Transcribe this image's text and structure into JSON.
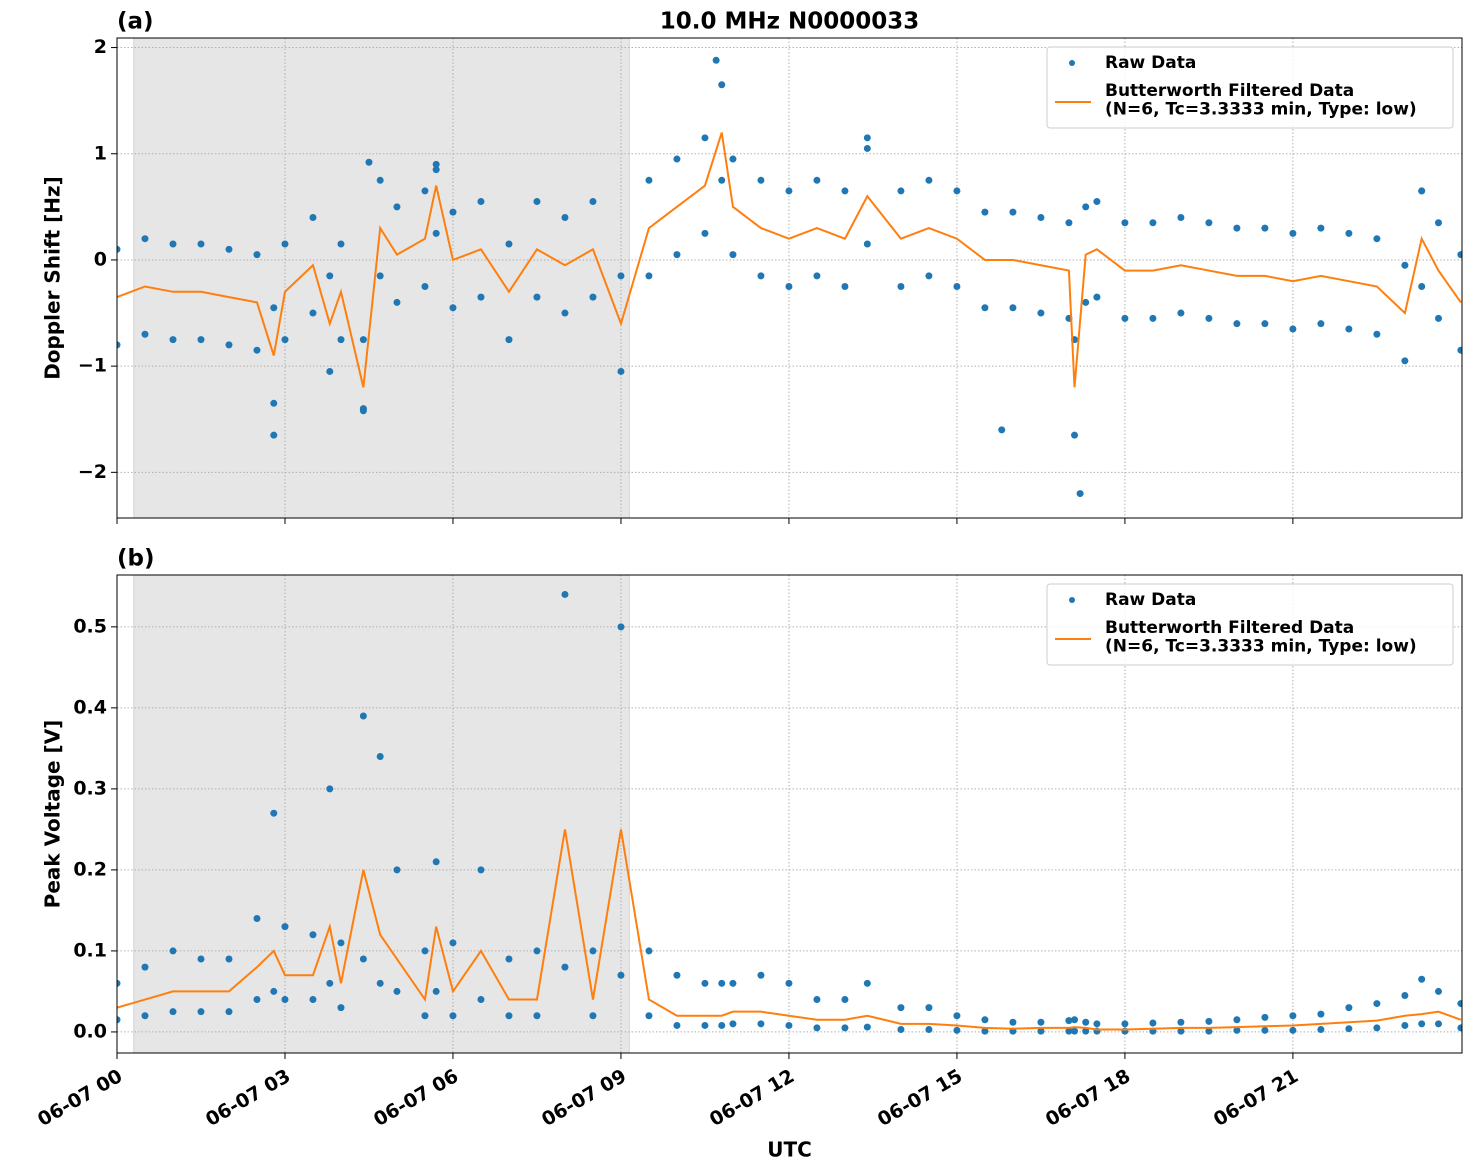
{
  "chart_data": [
    {
      "type": "line",
      "panel_label": "(a)",
      "title": "10.0 MHz N0000033",
      "ylabel": "Doppler Shift [Hz]",
      "xlim": [
        0,
        24.02
      ],
      "xticks": [
        0,
        3,
        6,
        9,
        12,
        15,
        18,
        21
      ],
      "ylim": [
        -2.43,
        2.09
      ],
      "yticks": [
        {
          "value": -2,
          "label": "−2"
        },
        {
          "value": -1,
          "label": "−1"
        },
        0,
        1,
        2
      ],
      "grid": true,
      "legend": "upper right",
      "shade": [
        0.3,
        9.15
      ],
      "shade_color": "#e6e6e6",
      "series": [
        {
          "name": "Raw Data",
          "color": "#1f77b4",
          "marker": "dot",
          "x": [
            0,
            0.5,
            1,
            1.5,
            2,
            2.5,
            2.8,
            3,
            3.5,
            3.8,
            4,
            4.4,
            4.7,
            5,
            5.5,
            5.7,
            6,
            6.5,
            7,
            7.5,
            8,
            8.5,
            9,
            9.5,
            10,
            10.5,
            10.8,
            11,
            11.5,
            12,
            12.5,
            13,
            13.4,
            14,
            14.5,
            15,
            15.5,
            16,
            16.5,
            17,
            17.1,
            17.3,
            17.5,
            18,
            18.5,
            19,
            19.5,
            20,
            20.5,
            21,
            21.5,
            22,
            22.5,
            23,
            23.3,
            23.6,
            24,
            0,
            0.5,
            1,
            1.5,
            2,
            2.5,
            2.8,
            3,
            3.5,
            3.8,
            4,
            4.4,
            4.7,
            5,
            5.5,
            5.7,
            6,
            6.5,
            7,
            7.5,
            8,
            8.5,
            9,
            9.5,
            10,
            10.5,
            10.8,
            11,
            11.5,
            12,
            12.5,
            13,
            13.4,
            14,
            14.5,
            15,
            15.5,
            16,
            16.5,
            17,
            17.1,
            17.3,
            17.5,
            18,
            18.5,
            19,
            19.5,
            20,
            20.5,
            21,
            21.5,
            22,
            22.5,
            23,
            23.3,
            23.6,
            24,
            2.8,
            4.4,
            4.5,
            5.7,
            10.7,
            13.4,
            15.8,
            17.2,
            23.3
          ],
          "values": [
            0.1,
            0.2,
            0.15,
            0.15,
            0.1,
            0.05,
            -0.45,
            0.15,
            0.4,
            -0.15,
            0.15,
            -0.75,
            0.75,
            0.5,
            0.65,
            0.85,
            0.45,
            0.55,
            0.15,
            0.55,
            0.4,
            0.55,
            -0.15,
            0.75,
            0.95,
            1.15,
            1.65,
            0.95,
            0.75,
            0.65,
            0.75,
            0.65,
            1.05,
            0.65,
            0.75,
            0.65,
            0.45,
            0.45,
            0.4,
            0.35,
            -0.75,
            0.5,
            0.55,
            0.35,
            0.35,
            0.4,
            0.35,
            0.3,
            0.3,
            0.25,
            0.3,
            0.25,
            0.2,
            -0.05,
            0.65,
            0.35,
            0.05,
            -0.8,
            -0.7,
            -0.75,
            -0.75,
            -0.8,
            -0.85,
            -1.35,
            -0.75,
            -0.5,
            -1.05,
            -0.75,
            -1.4,
            -0.15,
            -0.4,
            -0.25,
            0.25,
            -0.45,
            -0.35,
            -0.75,
            -0.35,
            -0.5,
            -0.35,
            -1.05,
            -0.15,
            0.05,
            0.25,
            0.75,
            0.05,
            -0.15,
            -0.25,
            -0.15,
            -0.25,
            0.15,
            -0.25,
            -0.15,
            -0.25,
            -0.45,
            -0.45,
            -0.5,
            -0.55,
            -1.65,
            -0.4,
            -0.35,
            -0.55,
            -0.55,
            -0.5,
            -0.55,
            -0.6,
            -0.6,
            -0.65,
            -0.6,
            -0.65,
            -0.7,
            -0.95,
            -0.25,
            -0.55,
            -0.85,
            -1.65,
            -1.42,
            0.92,
            0.9,
            1.88,
            1.15,
            -1.6,
            -2.2,
            0.65
          ]
        },
        {
          "name": "Butterworth Filtered Data\n(N=6, Tc=3.3333 min, Type: low)",
          "color": "#ff7f0e",
          "x": [
            0,
            0.5,
            1,
            1.5,
            2,
            2.5,
            2.8,
            3,
            3.5,
            3.8,
            4,
            4.4,
            4.7,
            5,
            5.5,
            5.7,
            6,
            6.5,
            7,
            7.5,
            8,
            8.5,
            9,
            9.5,
            10,
            10.5,
            10.8,
            11,
            11.5,
            12,
            12.5,
            13,
            13.4,
            14,
            14.5,
            15,
            15.5,
            16,
            16.5,
            17,
            17.1,
            17.3,
            17.5,
            18,
            18.5,
            19,
            19.5,
            20,
            20.5,
            21,
            21.5,
            22,
            22.5,
            23,
            23.3,
            23.6,
            24
          ],
          "values": [
            -0.35,
            -0.25,
            -0.3,
            -0.3,
            -0.35,
            -0.4,
            -0.9,
            -0.3,
            -0.05,
            -0.6,
            -0.3,
            -1.2,
            0.3,
            0.05,
            0.2,
            0.7,
            0.0,
            0.1,
            -0.3,
            0.1,
            -0.05,
            0.1,
            -0.6,
            0.3,
            0.5,
            0.7,
            1.2,
            0.5,
            0.3,
            0.2,
            0.3,
            0.2,
            0.6,
            0.2,
            0.3,
            0.2,
            0.0,
            0.0,
            -0.05,
            -0.1,
            -1.2,
            0.05,
            0.1,
            -0.1,
            -0.1,
            -0.05,
            -0.1,
            -0.15,
            -0.15,
            -0.2,
            -0.15,
            -0.2,
            -0.25,
            -0.5,
            0.2,
            -0.1,
            -0.4
          ]
        }
      ]
    },
    {
      "type": "line",
      "panel_label": "(b)",
      "ylabel": "Peak Voltage [V]",
      "xlabel": "UTC",
      "xlim": [
        0,
        24.02
      ],
      "xticks": [
        {
          "value": 0,
          "label": "06-07 00"
        },
        {
          "value": 3,
          "label": "06-07 03"
        },
        {
          "value": 6,
          "label": "06-07 06"
        },
        {
          "value": 9,
          "label": "06-07 09"
        },
        {
          "value": 12,
          "label": "06-07 12"
        },
        {
          "value": 15,
          "label": "06-07 15"
        },
        {
          "value": 18,
          "label": "06-07 18"
        },
        {
          "value": 21,
          "label": "06-07 21"
        }
      ],
      "ylim": [
        -0.026,
        0.564
      ],
      "yticks": [
        {
          "value": 0,
          "label": "0.0"
        },
        0.1,
        0.2,
        0.3,
        0.4,
        0.5
      ],
      "grid": true,
      "legend": "upper right",
      "shade": [
        0.3,
        9.15
      ],
      "shade_color": "#e6e6e6",
      "series": [
        {
          "name": "Raw Data",
          "color": "#1f77b4",
          "marker": "dot",
          "x": [
            0,
            0.5,
            1,
            1.5,
            2,
            2.5,
            2.8,
            3,
            3.5,
            3.8,
            4,
            4.4,
            4.7,
            5,
            5.5,
            5.7,
            6,
            6.5,
            7,
            7.5,
            8,
            8.5,
            9,
            9.5,
            10,
            10.5,
            10.8,
            11,
            11.5,
            12,
            12.5,
            13,
            13.4,
            14,
            14.5,
            15,
            15.5,
            16,
            16.5,
            17,
            17.1,
            17.3,
            17.5,
            18,
            18.5,
            19,
            19.5,
            20,
            20.5,
            21,
            21.5,
            22,
            22.5,
            23,
            23.3,
            23.6,
            24,
            0,
            0.5,
            1,
            1.5,
            2,
            2.5,
            2.8,
            3,
            3.5,
            3.8,
            4,
            4.4,
            4.7,
            5,
            5.5,
            5.7,
            6,
            6.5,
            7,
            7.5,
            8,
            8.5,
            9,
            9.5,
            10,
            10.5,
            10.8,
            11,
            11.5,
            12,
            12.5,
            13,
            13.4,
            14,
            14.5,
            15,
            15.5,
            16,
            16.5,
            17,
            17.1,
            17.3,
            17.5,
            18,
            18.5,
            19,
            19.5,
            20,
            20.5,
            21,
            21.5,
            22,
            22.5,
            23,
            23.3,
            23.6,
            24
          ],
          "values": [
            0.06,
            0.08,
            0.1,
            0.09,
            0.09,
            0.14,
            0.27,
            0.13,
            0.12,
            0.3,
            0.11,
            0.39,
            0.34,
            0.2,
            0.1,
            0.21,
            0.11,
            0.2,
            0.09,
            0.1,
            0.54,
            0.1,
            0.5,
            0.1,
            0.07,
            0.06,
            0.06,
            0.06,
            0.07,
            0.06,
            0.04,
            0.04,
            0.06,
            0.03,
            0.03,
            0.02,
            0.015,
            0.012,
            0.012,
            0.014,
            0.015,
            0.012,
            0.01,
            0.01,
            0.011,
            0.012,
            0.013,
            0.015,
            0.018,
            0.02,
            0.022,
            0.03,
            0.035,
            0.045,
            0.065,
            0.05,
            0.035,
            0.015,
            0.02,
            0.025,
            0.025,
            0.025,
            0.04,
            0.05,
            0.04,
            0.04,
            0.06,
            0.03,
            0.09,
            0.06,
            0.05,
            0.02,
            0.05,
            0.02,
            0.04,
            0.02,
            0.02,
            0.08,
            0.02,
            0.07,
            0.02,
            0.008,
            0.008,
            0.008,
            0.01,
            0.01,
            0.008,
            0.005,
            0.005,
            0.006,
            0.003,
            0.003,
            0.002,
            0.001,
            0.001,
            0.001,
            0.001,
            0.001,
            0.001,
            0.001,
            0.001,
            0.001,
            0.001,
            0.001,
            0.002,
            0.002,
            0.002,
            0.003,
            0.004,
            0.005,
            0.008,
            0.01,
            0.01,
            0.005
          ]
        },
        {
          "name": "Butterworth Filtered Data\n(N=6, Tc=3.3333 min, Type: low)",
          "color": "#ff7f0e",
          "x": [
            0,
            0.5,
            1,
            1.5,
            2,
            2.5,
            2.8,
            3,
            3.5,
            3.8,
            4,
            4.4,
            4.7,
            5,
            5.5,
            5.7,
            6,
            6.5,
            7,
            7.5,
            8,
            8.5,
            9,
            9.5,
            10,
            10.5,
            10.8,
            11,
            11.5,
            12,
            12.5,
            13,
            13.4,
            14,
            14.5,
            15,
            15.5,
            16,
            16.5,
            17,
            17.1,
            17.3,
            17.5,
            18,
            18.5,
            19,
            19.5,
            20,
            20.5,
            21,
            21.5,
            22,
            22.5,
            23,
            23.3,
            23.6,
            24
          ],
          "values": [
            0.03,
            0.04,
            0.05,
            0.05,
            0.05,
            0.08,
            0.1,
            0.07,
            0.07,
            0.13,
            0.06,
            0.2,
            0.12,
            0.09,
            0.04,
            0.13,
            0.05,
            0.1,
            0.04,
            0.04,
            0.25,
            0.04,
            0.25,
            0.04,
            0.02,
            0.02,
            0.02,
            0.025,
            0.025,
            0.02,
            0.015,
            0.015,
            0.02,
            0.01,
            0.01,
            0.008,
            0.005,
            0.004,
            0.005,
            0.005,
            0.006,
            0.005,
            0.003,
            0.003,
            0.004,
            0.005,
            0.005,
            0.006,
            0.007,
            0.008,
            0.01,
            0.012,
            0.014,
            0.02,
            0.022,
            0.025,
            0.015
          ]
        }
      ]
    }
  ]
}
